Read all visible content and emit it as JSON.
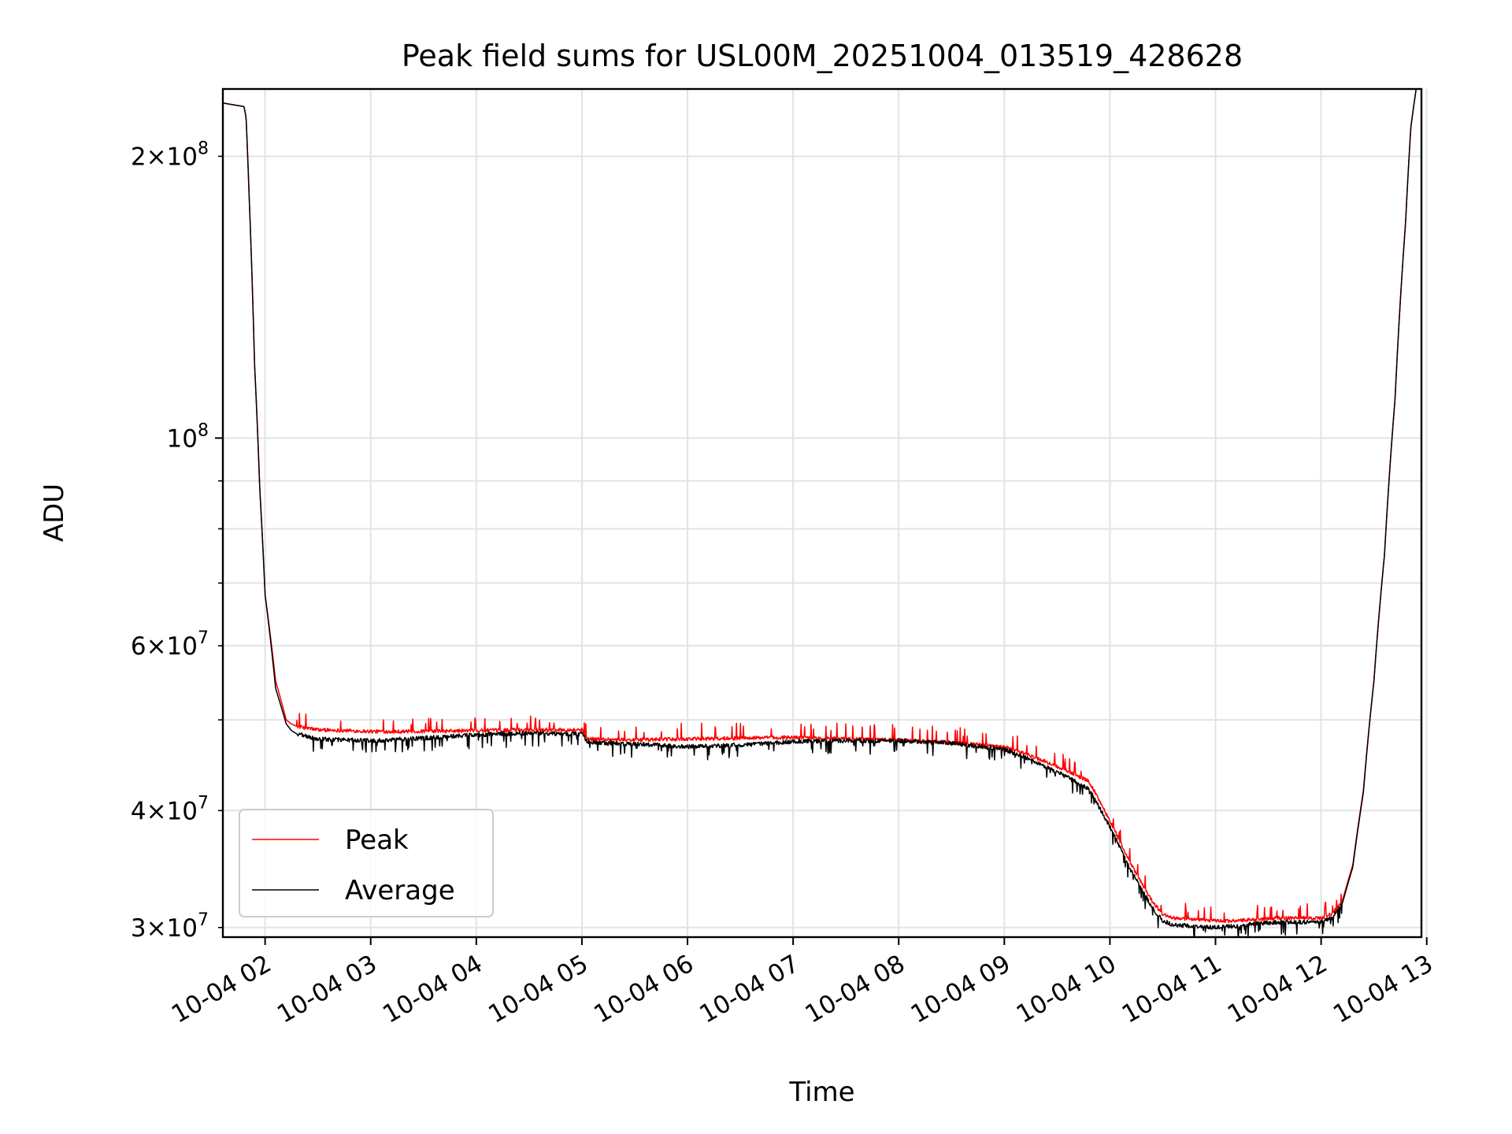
{
  "chart_data": {
    "type": "line",
    "title": "Peak field sums for USL00M_20251004_013519_428628",
    "xlabel": "Time",
    "ylabel": "ADU",
    "yscale": "log",
    "grid": true,
    "legend_location": "lower-left",
    "x_unit": "hours",
    "xlim": [
      1.6,
      12.95
    ],
    "ylim": [
      29300000,
      236000000
    ],
    "x_ticks": [
      {
        "value": 2,
        "label": "10-04 02"
      },
      {
        "value": 3,
        "label": "10-04 03"
      },
      {
        "value": 4,
        "label": "10-04 04"
      },
      {
        "value": 5,
        "label": "10-04 05"
      },
      {
        "value": 6,
        "label": "10-04 06"
      },
      {
        "value": 7,
        "label": "10-04 07"
      },
      {
        "value": 8,
        "label": "10-04 08"
      },
      {
        "value": 9,
        "label": "10-04 09"
      },
      {
        "value": 10,
        "label": "10-04 10"
      },
      {
        "value": 11,
        "label": "10-04 11"
      },
      {
        "value": 12,
        "label": "10-04 12"
      },
      {
        "value": 13,
        "label": "10-04 13"
      }
    ],
    "y_major_ticks": [
      {
        "value": 100000000,
        "mantissa": "",
        "base": "10",
        "exp": "8"
      }
    ],
    "y_minor_ticks": [
      {
        "value": 30000000,
        "mantissa": "3",
        "base": "10",
        "exp": "7",
        "labeled": true
      },
      {
        "value": 40000000,
        "mantissa": "4",
        "base": "10",
        "exp": "7",
        "labeled": true
      },
      {
        "value": 50000000,
        "labeled": false
      },
      {
        "value": 60000000,
        "mantissa": "6",
        "base": "10",
        "exp": "7",
        "labeled": true
      },
      {
        "value": 70000000,
        "labeled": false
      },
      {
        "value": 80000000,
        "labeled": false
      },
      {
        "value": 90000000,
        "labeled": false
      },
      {
        "value": 200000000,
        "mantissa": "2",
        "base": "10",
        "exp": "8",
        "labeled": true
      }
    ],
    "series": [
      {
        "name": "Peak",
        "color": "#ff0000",
        "noise_amplitude": 0.025,
        "x": [
          1.6,
          1.8,
          1.82,
          1.85,
          1.9,
          1.95,
          2.0,
          2.1,
          2.2,
          2.25,
          2.3,
          2.5,
          3.0,
          3.5,
          4.0,
          4.5,
          5.0,
          5.05,
          5.5,
          6.0,
          6.5,
          7.0,
          7.5,
          8.0,
          8.5,
          9.0,
          9.2,
          9.5,
          9.8,
          10.0,
          10.2,
          10.4,
          10.5,
          10.6,
          10.8,
          11.0,
          11.2,
          11.4,
          11.6,
          11.8,
          12.0,
          12.1,
          12.2,
          12.3,
          12.4,
          12.5,
          12.6,
          12.7,
          12.8,
          12.85,
          12.9
        ],
        "values": [
          228000000,
          226000000,
          220000000,
          180000000,
          120000000,
          88000000,
          68000000,
          55000000,
          50000000,
          49500000,
          49200000,
          48800000,
          48600000,
          48600000,
          48700000,
          48800000,
          48800000,
          47700000,
          47600000,
          47700000,
          47800000,
          47900000,
          47700000,
          47600000,
          47300000,
          46800000,
          46000000,
          44600000,
          43000000,
          39000000,
          35000000,
          32000000,
          31000000,
          30700000,
          30600000,
          30500000,
          30500000,
          30600000,
          30700000,
          30700000,
          30700000,
          31000000,
          32000000,
          35000000,
          42000000,
          55000000,
          75000000,
          110000000,
          170000000,
          215000000,
          236000000
        ]
      },
      {
        "name": "Average",
        "color": "#000000",
        "noise_amplitude": 0.03,
        "x": [
          1.6,
          1.8,
          1.82,
          1.85,
          1.9,
          1.95,
          2.0,
          2.1,
          2.2,
          2.25,
          2.3,
          2.5,
          3.0,
          3.5,
          4.0,
          4.5,
          5.0,
          5.05,
          5.5,
          6.0,
          6.5,
          7.0,
          7.5,
          8.0,
          8.5,
          9.0,
          9.2,
          9.5,
          9.8,
          10.0,
          10.2,
          10.4,
          10.5,
          10.6,
          10.8,
          11.0,
          11.2,
          11.4,
          11.6,
          11.8,
          12.0,
          12.1,
          12.2,
          12.3,
          12.4,
          12.5,
          12.6,
          12.7,
          12.8,
          12.85,
          12.9
        ],
        "values": [
          228000000,
          226000000,
          220000000,
          180000000,
          120000000,
          88000000,
          68000000,
          54000000,
          49500000,
          48700000,
          48300000,
          47700000,
          47500000,
          47800000,
          48200000,
          48400000,
          48300000,
          47300000,
          47100000,
          46800000,
          47000000,
          47400000,
          47500000,
          47500000,
          47200000,
          46500000,
          45600000,
          44000000,
          42200000,
          38400000,
          34500000,
          31500000,
          30500000,
          30200000,
          30100000,
          30000000,
          30100000,
          30300000,
          30400000,
          30400000,
          30400000,
          30700000,
          31800000,
          34800000,
          41800000,
          55000000,
          75000000,
          110000000,
          170000000,
          215000000,
          236000000
        ]
      }
    ]
  }
}
